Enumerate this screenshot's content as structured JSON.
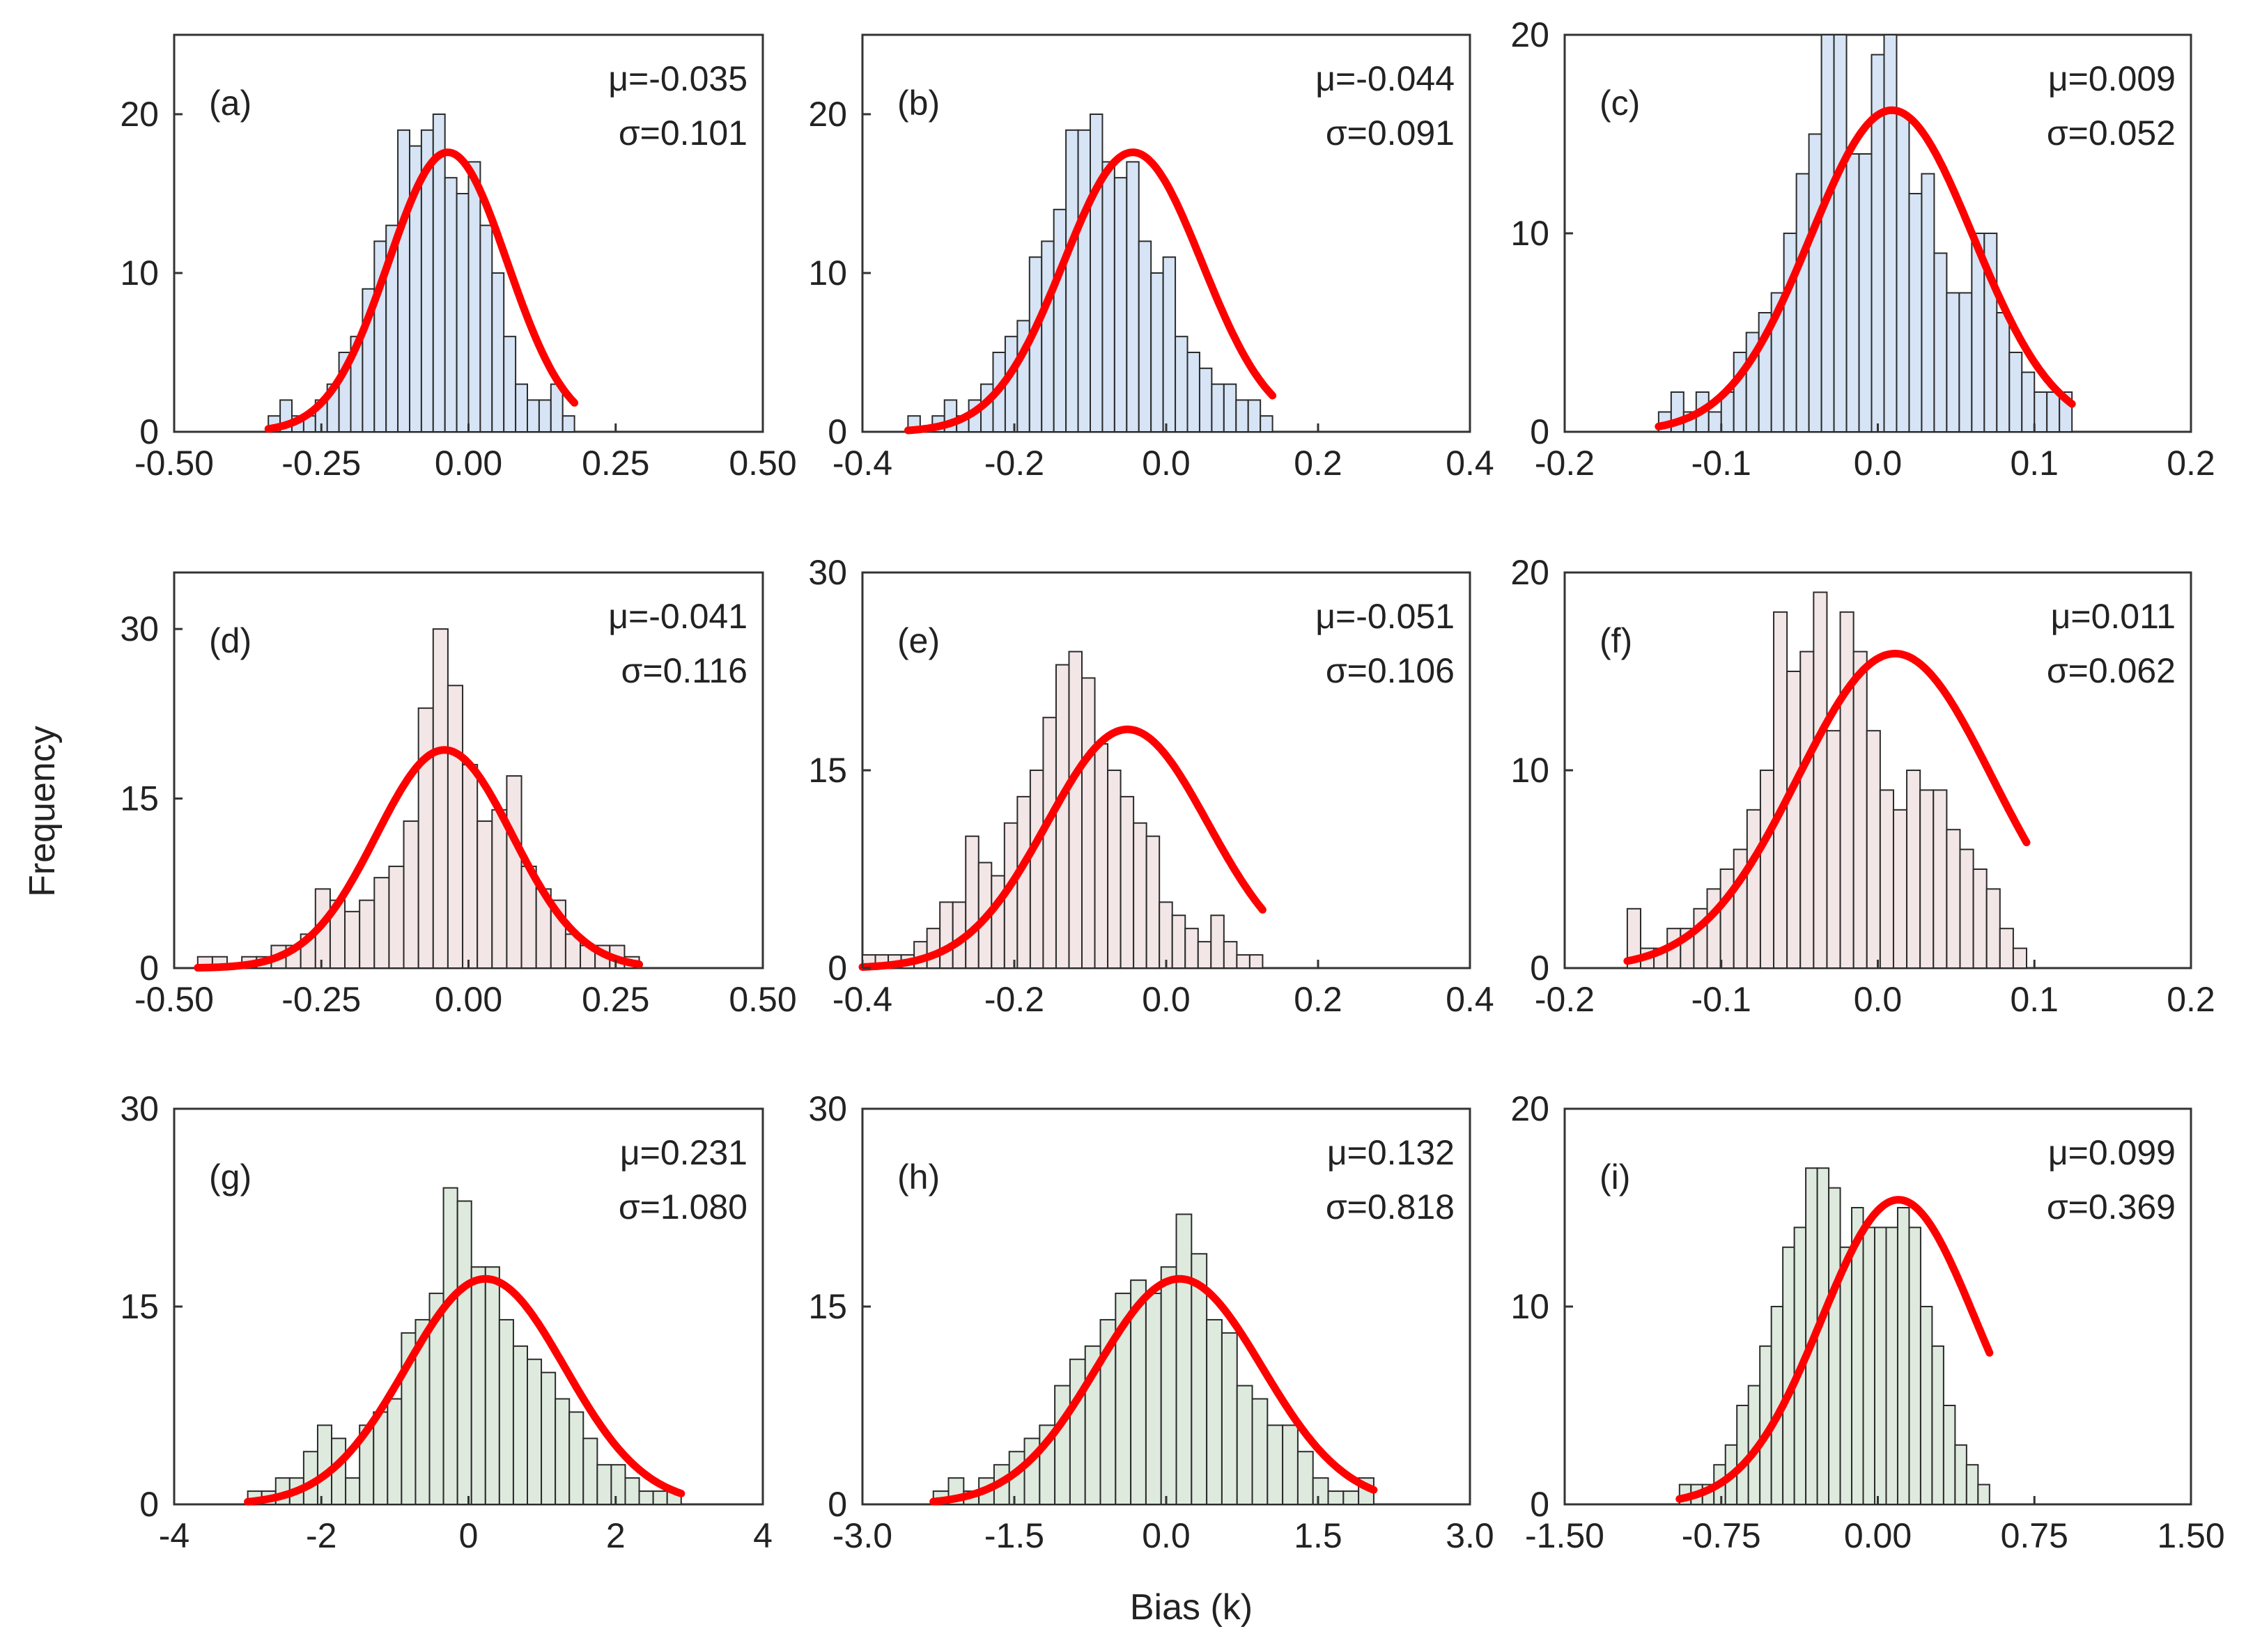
{
  "chart_data": {
    "type": "histogram-grid",
    "ylabel": "Frequency",
    "xlabel": "Bias (k)",
    "fit_color": "#ff0000",
    "panels": [
      {
        "label": "(a)",
        "mu_text": "μ=-0.035",
        "sigma_text": "σ=0.101",
        "mu": -0.035,
        "sigma": 0.101,
        "color": "#d6e4f5",
        "xlim": [
          -0.5,
          0.5
        ],
        "ylim": [
          0,
          25
        ],
        "xticks": [
          "-0.50",
          "-0.25",
          "0.00",
          "0.25",
          "0.50"
        ],
        "xtickvals": [
          -0.5,
          -0.25,
          0,
          0.25,
          0.5
        ],
        "yticks": [
          "0",
          "10",
          "20"
        ],
        "ytickvals": [
          0,
          10,
          20
        ],
        "bin_start": -0.34,
        "bin_width": 0.02,
        "counts": [
          1,
          2,
          1,
          1,
          2,
          3,
          5,
          6,
          9,
          12,
          13,
          19,
          18,
          19,
          20,
          16,
          15,
          17,
          13,
          10,
          6,
          3,
          2,
          2,
          3,
          1
        ],
        "peak": 17.6
      },
      {
        "label": "(b)",
        "mu_text": "μ=-0.044",
        "sigma_text": "σ=0.091",
        "mu": -0.044,
        "sigma": 0.091,
        "color": "#d6e4f5",
        "xlim": [
          -0.4,
          0.4
        ],
        "ylim": [
          0,
          25
        ],
        "xticks": [
          "-0.4",
          "-0.2",
          "0.0",
          "0.2",
          "0.4"
        ],
        "xtickvals": [
          -0.4,
          -0.2,
          0,
          0.2,
          0.4
        ],
        "yticks": [
          "0",
          "10",
          "20"
        ],
        "ytickvals": [
          0,
          10,
          20
        ],
        "bin_start": -0.34,
        "bin_width": 0.016,
        "counts": [
          1,
          0,
          1,
          2,
          1,
          2,
          3,
          5,
          6,
          7,
          11,
          12,
          14,
          19,
          19,
          20,
          17,
          16,
          17,
          12,
          10,
          11,
          6,
          5,
          4,
          3,
          3,
          2,
          2,
          1
        ],
        "peak": 17.6
      },
      {
        "label": "(c)",
        "mu_text": "μ=0.009",
        "sigma_text": "σ=0.052",
        "mu": 0.009,
        "sigma": 0.052,
        "color": "#d6e4f5",
        "xlim": [
          -0.2,
          0.2
        ],
        "ylim": [
          0,
          20
        ],
        "xticks": [
          "-0.2",
          "-0.1",
          "0.0",
          "0.1",
          "0.2"
        ],
        "xtickvals": [
          -0.2,
          -0.1,
          0,
          0.1,
          0.2
        ],
        "yticks": [
          "0",
          "10",
          "20"
        ],
        "ytickvals": [
          0,
          10,
          20
        ],
        "bin_start": -0.14,
        "bin_width": 0.008,
        "counts": [
          1,
          2,
          1,
          2,
          1,
          2,
          4,
          5,
          6,
          7,
          10,
          13,
          15,
          20,
          20,
          14,
          14,
          19,
          20,
          16,
          12,
          13,
          9,
          7,
          7,
          10,
          10,
          6,
          4,
          3,
          2,
          2,
          2
        ],
        "peak": 16.2
      },
      {
        "label": "(d)",
        "mu_text": "μ=-0.041",
        "sigma_text": "σ=0.116",
        "mu": -0.041,
        "sigma": 0.116,
        "color": "#f3e6e6",
        "xlim": [
          -0.5,
          0.5
        ],
        "ylim": [
          0,
          35
        ],
        "xticks": [
          "-0.50",
          "-0.25",
          "0.00",
          "0.25",
          "0.50"
        ],
        "xtickvals": [
          -0.5,
          -0.25,
          0,
          0.25,
          0.5
        ],
        "yticks": [
          "0",
          "15",
          "30"
        ],
        "ytickvals": [
          0,
          15,
          30
        ],
        "bin_start": -0.46,
        "bin_width": 0.025,
        "counts": [
          1,
          1,
          0,
          1,
          1,
          2,
          2,
          3,
          7,
          6,
          5,
          6,
          8,
          9,
          13,
          23,
          30,
          25,
          18,
          13,
          14,
          17,
          9,
          7,
          6,
          3,
          2,
          2,
          2,
          1
        ],
        "peak": 19.3
      },
      {
        "label": "(e)",
        "mu_text": "μ=-0.051",
        "sigma_text": "σ=0.106",
        "mu": -0.051,
        "sigma": 0.106,
        "color": "#f3e6e6",
        "xlim": [
          -0.4,
          0.4
        ],
        "ylim": [
          0,
          30
        ],
        "xticks": [
          "-0.4",
          "-0.2",
          "0.0",
          "0.2",
          "0.4"
        ],
        "xtickvals": [
          -0.4,
          -0.2,
          0,
          0.2,
          0.4
        ],
        "yticks": [
          "0",
          "15",
          "30"
        ],
        "ytickvals": [
          0,
          15,
          30
        ],
        "bin_start": -0.4,
        "bin_width": 0.017,
        "counts": [
          1,
          1,
          1,
          1,
          2,
          3,
          5,
          5,
          10,
          8,
          7,
          11,
          13,
          15,
          19,
          23,
          24,
          22,
          17,
          15,
          13,
          11,
          10,
          5,
          4,
          3,
          2,
          4,
          2,
          1,
          1
        ],
        "peak": 18.1
      },
      {
        "label": "(f)",
        "mu_text": "μ=0.011",
        "sigma_text": "σ=0.062",
        "mu": 0.011,
        "sigma": 0.062,
        "color": "#f3e6e6",
        "xlim": [
          -0.2,
          0.2
        ],
        "ylim": [
          0,
          20
        ],
        "xticks": [
          "-0.2",
          "-0.1",
          "0.0",
          "0.1",
          "0.2"
        ],
        "xtickvals": [
          -0.2,
          -0.1,
          0,
          0.1,
          0.2
        ],
        "yticks": [
          "0",
          "10",
          "20"
        ],
        "ytickvals": [
          0,
          10,
          20
        ],
        "bin_start": -0.16,
        "bin_width": 0.0085,
        "counts": [
          3,
          1,
          1,
          2,
          2,
          3,
          4,
          5,
          6,
          8,
          10,
          18,
          15,
          16,
          19,
          12,
          18,
          16,
          12,
          9,
          8,
          10,
          9,
          9,
          7,
          6,
          5,
          4,
          2,
          1
        ],
        "peak": 15.9
      },
      {
        "label": "(g)",
        "mu_text": "μ=0.231",
        "sigma_text": "σ=1.080",
        "mu": 0.231,
        "sigma": 1.08,
        "color": "#dfeadf",
        "xlim": [
          -4,
          4
        ],
        "ylim": [
          0,
          30
        ],
        "xticks": [
          "-4",
          "-2",
          "0",
          "2",
          "4"
        ],
        "xtickvals": [
          -4,
          -2,
          0,
          2,
          4
        ],
        "yticks": [
          "0",
          "15",
          "30"
        ],
        "ytickvals": [
          0,
          15,
          30
        ],
        "bin_start": -3.0,
        "bin_width": 0.19,
        "counts": [
          1,
          1,
          2,
          2,
          4,
          6,
          5,
          2,
          6,
          7,
          8,
          13,
          14,
          16,
          24,
          23,
          18,
          18,
          14,
          12,
          11,
          10,
          8,
          7,
          5,
          3,
          3,
          2,
          1,
          1,
          1
        ],
        "peak": 17.1
      },
      {
        "label": "(h)",
        "mu_text": "μ=0.132",
        "sigma_text": "σ=0.818",
        "mu": 0.132,
        "sigma": 0.818,
        "color": "#dfeadf",
        "xlim": [
          -3,
          3
        ],
        "ylim": [
          0,
          30
        ],
        "xticks": [
          "-3.0",
          "-1.5",
          "0.0",
          "1.5",
          "3.0"
        ],
        "xtickvals": [
          -3,
          -1.5,
          0,
          1.5,
          3
        ],
        "yticks": [
          "0",
          "15",
          "30"
        ],
        "ytickvals": [
          0,
          15,
          30
        ],
        "bin_start": -2.3,
        "bin_width": 0.15,
        "counts": [
          1,
          2,
          1,
          2,
          3,
          4,
          5,
          6,
          9,
          11,
          12,
          14,
          16,
          17,
          16,
          18,
          22,
          19,
          14,
          13,
          9,
          8,
          6,
          6,
          4,
          2,
          1,
          1,
          2
        ],
        "peak": 17.1
      },
      {
        "label": "(i)",
        "mu_text": "μ=0.099",
        "sigma_text": "σ=0.369",
        "mu": 0.099,
        "sigma": 0.369,
        "color": "#dfeadf",
        "xlim": [
          -1.5,
          1.5
        ],
        "ylim": [
          0,
          20
        ],
        "xticks": [
          "-1.50",
          "-0.75",
          "0.00",
          "0.75",
          "1.50"
        ],
        "xtickvals": [
          -1.5,
          -0.75,
          0,
          0.75,
          1.5
        ],
        "yticks": [
          "0",
          "10",
          "20"
        ],
        "ytickvals": [
          0,
          10,
          20
        ],
        "bin_start": -0.95,
        "bin_width": 0.055,
        "counts": [
          1,
          1,
          1,
          2,
          3,
          5,
          6,
          8,
          10,
          13,
          14,
          17,
          17,
          16,
          13,
          15,
          14,
          14,
          14,
          15,
          14,
          10,
          8,
          5,
          3,
          2,
          1
        ],
        "peak": 15.4
      }
    ]
  }
}
